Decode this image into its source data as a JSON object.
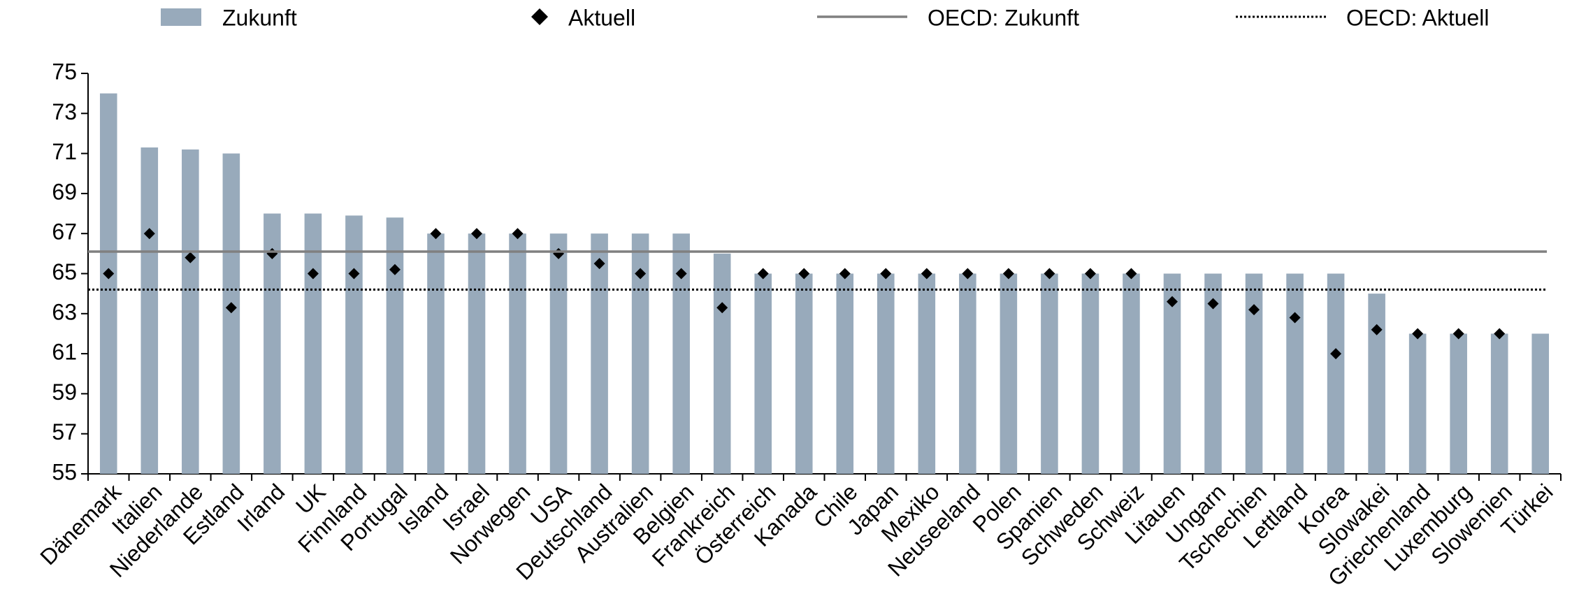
{
  "chart_data": {
    "type": "bar",
    "categories": [
      "Dänemark",
      "Italien",
      "Niederlande",
      "Estland",
      "Irland",
      "UK",
      "Finnland",
      "Portugal",
      "Island",
      "Israel",
      "Norwegen",
      "USA",
      "Deutschland",
      "Australien",
      "Belgien",
      "Frankreich",
      "Österreich",
      "Kanada",
      "Chile",
      "Japan",
      "Mexiko",
      "Neuseeland",
      "Polen",
      "Spanien",
      "Schweden",
      "Schweiz",
      "Litauen",
      "Ungarn",
      "Tschechien",
      "Lettland",
      "Korea",
      "Slowakei",
      "Griechenland",
      "Luxemburg",
      "Slowenien",
      "Türkei"
    ],
    "series": [
      {
        "name": "Zukunft",
        "kind": "bar",
        "color": "#98aabb",
        "values": [
          74,
          71.3,
          71.2,
          71,
          68,
          68,
          67.9,
          67.8,
          67,
          67,
          67,
          67,
          67,
          67,
          67,
          66,
          65,
          65,
          65,
          65,
          65,
          65,
          65,
          65,
          65,
          65,
          65,
          65,
          65,
          65,
          65,
          64,
          62,
          62,
          62,
          62
        ]
      },
      {
        "name": "Aktuell",
        "kind": "marker",
        "color": "#000000",
        "values": [
          65,
          67,
          65.8,
          63.3,
          66,
          65,
          65,
          65.2,
          67,
          67,
          67,
          66,
          65.5,
          65,
          65,
          63.3,
          65,
          65,
          65,
          65,
          65,
          65,
          65,
          65,
          65,
          65,
          63.6,
          63.5,
          63.2,
          62.8,
          61,
          62.2,
          62,
          62,
          62,
          null
        ]
      }
    ],
    "reference_lines": [
      {
        "name": "OECD: Zukunft",
        "value": 66.1,
        "color": "#808080",
        "style": "solid"
      },
      {
        "name": "OECD: Aktuell",
        "value": 64.2,
        "color": "#000000",
        "style": "dotted"
      }
    ],
    "ylim": [
      55,
      75
    ],
    "yticks": [
      55,
      57,
      59,
      61,
      63,
      65,
      67,
      69,
      71,
      73,
      75
    ],
    "grid": false
  }
}
